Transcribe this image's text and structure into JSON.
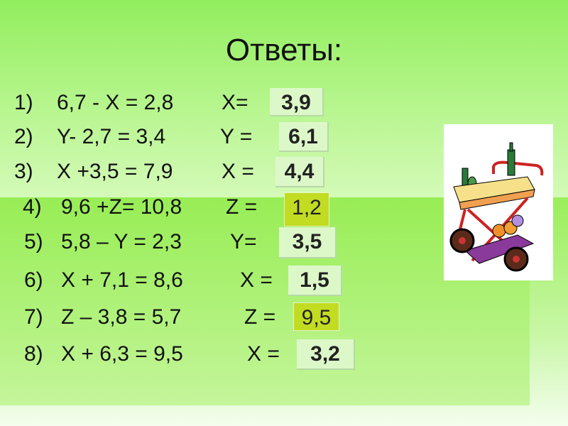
{
  "title": "Ответы:",
  "rows": [
    {
      "num": "1)",
      "equation": "6,7 - X = 2,8",
      "var": "X=",
      "answer": "3,9",
      "highlight": false
    },
    {
      "num": "2)",
      "equation": "Y- 2,7 = 3,4",
      "var": "Y =",
      "answer": "6,1",
      "highlight": false
    },
    {
      "num": "3)",
      "equation": "X +3,5 = 7,9",
      "var": "X =",
      "answer": "4,4",
      "highlight": false
    },
    {
      "num": "4)",
      "equation": "9,6 +Z= 10,8",
      "var": "Z =",
      "answer": "1,2",
      "highlight": true
    },
    {
      "num": "5)",
      "equation": "5,8 – Y = 2,3",
      "var": "Y=",
      "answer": "3,5",
      "highlight": false
    },
    {
      "num": "6)",
      "equation": "X + 7,1 = 8,6",
      "var": "X =",
      "answer": "1,5",
      "highlight": false
    },
    {
      "num": "7)",
      "equation": "Z – 3,8 = 5,7",
      "var": "Z =",
      "answer": "9,5",
      "highlight": true
    },
    {
      "num": "8)",
      "equation": "X + 6,3 = 9,5",
      "var": "X =",
      "answer": "3,2",
      "highlight": false
    }
  ],
  "colors": {
    "background": "#98ed55",
    "answer_box": "#dcf8c8",
    "answer_highlight": "#c2dc22"
  },
  "image": "serving-cart-clipart"
}
